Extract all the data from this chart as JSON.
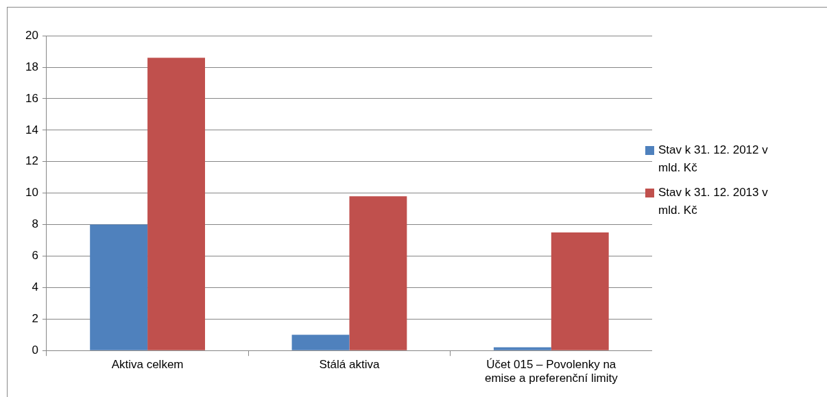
{
  "chart_data": {
    "type": "bar",
    "categories": [
      "Aktiva celkem",
      "Stálá aktiva",
      "Účet 015 – Povolenky na emise a preferenční limity"
    ],
    "series": [
      {
        "name": "Stav k 31. 12. 2012 v mld. Kč",
        "color": "#4f81bd",
        "values": [
          8.0,
          1.0,
          0.2
        ]
      },
      {
        "name": "Stav k 31. 12. 2013 v mld. Kč",
        "color": "#c0504d",
        "values": [
          18.6,
          9.8,
          7.5
        ]
      }
    ],
    "ylim": [
      0,
      20
    ],
    "yticks": [
      0,
      2,
      4,
      6,
      8,
      10,
      12,
      14,
      16,
      18,
      20
    ],
    "grid": "y",
    "legend": "right"
  }
}
